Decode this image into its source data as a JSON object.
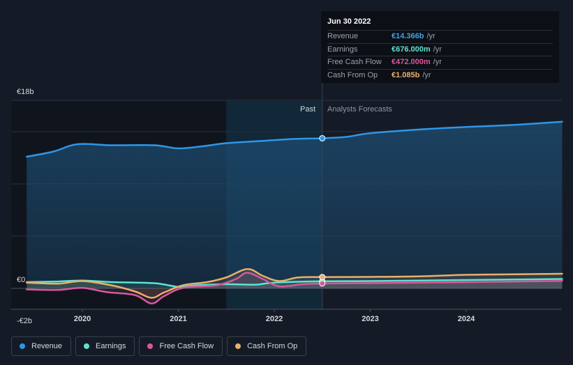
{
  "tooltip": {
    "date": "Jun 30 2022",
    "rows": [
      {
        "label": "Revenue",
        "value": "€14.366b",
        "unit": "/yr",
        "color": "#3ea3ec"
      },
      {
        "label": "Earnings",
        "value": "€676.000m",
        "unit": "/yr",
        "color": "#5ee3cf"
      },
      {
        "label": "Free Cash Flow",
        "value": "€472.000m",
        "unit": "/yr",
        "color": "#d9579e"
      },
      {
        "label": "Cash From Op",
        "value": "€1.085b",
        "unit": "/yr",
        "color": "#e8b06c"
      }
    ]
  },
  "legend": [
    {
      "label": "Revenue",
      "color": "#2e97e8"
    },
    {
      "label": "Earnings",
      "color": "#5ee3cf"
    },
    {
      "label": "Free Cash Flow",
      "color": "#d9579e"
    },
    {
      "label": "Cash From Op",
      "color": "#e8b06c"
    }
  ],
  "chart_data": {
    "type": "line",
    "x_ticks": [
      "2020",
      "2021",
      "2022",
      "2023",
      "2024"
    ],
    "y_tick_labels": [
      "€18b",
      "€0",
      "-€2b"
    ],
    "ylim": [
      -2,
      18
    ],
    "xlim": [
      2019.2,
      2025.0
    ],
    "past_label": "Past",
    "forecast_label": "Analysts Forecasts",
    "divider_x": 2022.5,
    "highlight_range": [
      2021.5,
      2022.5
    ],
    "series": [
      {
        "name": "Revenue",
        "color": "#2e97e8",
        "fill": true,
        "points": [
          [
            2019.42,
            12.6
          ],
          [
            2019.7,
            13.1
          ],
          [
            2019.95,
            13.8
          ],
          [
            2020.3,
            13.7
          ],
          [
            2020.75,
            13.7
          ],
          [
            2021.0,
            13.4
          ],
          [
            2021.25,
            13.6
          ],
          [
            2021.5,
            13.9
          ],
          [
            2021.85,
            14.1
          ],
          [
            2022.2,
            14.3
          ],
          [
            2022.5,
            14.37
          ],
          [
            2022.75,
            14.5
          ],
          [
            2023.0,
            14.85
          ],
          [
            2023.5,
            15.2
          ],
          [
            2024.0,
            15.45
          ],
          [
            2024.5,
            15.65
          ],
          [
            2025.0,
            15.95
          ]
        ]
      },
      {
        "name": "Earnings",
        "color": "#5ee3cf",
        "points": [
          [
            2019.42,
            0.6
          ],
          [
            2019.7,
            0.65
          ],
          [
            2020.0,
            0.75
          ],
          [
            2020.3,
            0.6
          ],
          [
            2020.75,
            0.5
          ],
          [
            2021.0,
            0.15
          ],
          [
            2021.2,
            0.3
          ],
          [
            2021.5,
            0.4
          ],
          [
            2021.8,
            0.35
          ],
          [
            2022.0,
            0.55
          ],
          [
            2022.5,
            0.68
          ],
          [
            2023.0,
            0.7
          ],
          [
            2023.5,
            0.75
          ],
          [
            2024.0,
            0.8
          ],
          [
            2024.5,
            0.85
          ],
          [
            2025.0,
            0.9
          ]
        ]
      },
      {
        "name": "Free Cash Flow",
        "color": "#d9579e",
        "points": [
          [
            2019.42,
            -0.1
          ],
          [
            2019.75,
            -0.15
          ],
          [
            2020.0,
            0.05
          ],
          [
            2020.25,
            -0.35
          ],
          [
            2020.55,
            -0.65
          ],
          [
            2020.72,
            -1.45
          ],
          [
            2020.85,
            -0.75
          ],
          [
            2021.05,
            0.05
          ],
          [
            2021.4,
            0.3
          ],
          [
            2021.6,
            0.9
          ],
          [
            2021.72,
            1.5
          ],
          [
            2021.88,
            0.9
          ],
          [
            2022.05,
            0.2
          ],
          [
            2022.3,
            0.4
          ],
          [
            2022.5,
            0.47
          ],
          [
            2023.0,
            0.5
          ],
          [
            2023.5,
            0.55
          ],
          [
            2024.0,
            0.6
          ],
          [
            2024.5,
            0.65
          ],
          [
            2025.0,
            0.72
          ]
        ]
      },
      {
        "name": "Cash From Op",
        "color": "#e8b06c",
        "points": [
          [
            2019.42,
            0.55
          ],
          [
            2019.75,
            0.45
          ],
          [
            2020.0,
            0.7
          ],
          [
            2020.3,
            0.3
          ],
          [
            2020.55,
            -0.3
          ],
          [
            2020.72,
            -0.9
          ],
          [
            2020.85,
            -0.4
          ],
          [
            2021.05,
            0.3
          ],
          [
            2021.3,
            0.6
          ],
          [
            2021.5,
            1.05
          ],
          [
            2021.72,
            1.85
          ],
          [
            2021.88,
            1.2
          ],
          [
            2022.05,
            0.7
          ],
          [
            2022.25,
            1.05
          ],
          [
            2022.5,
            1.085
          ],
          [
            2023.0,
            1.1
          ],
          [
            2023.5,
            1.15
          ],
          [
            2024.0,
            1.3
          ],
          [
            2024.5,
            1.35
          ],
          [
            2025.0,
            1.4
          ]
        ]
      }
    ]
  }
}
